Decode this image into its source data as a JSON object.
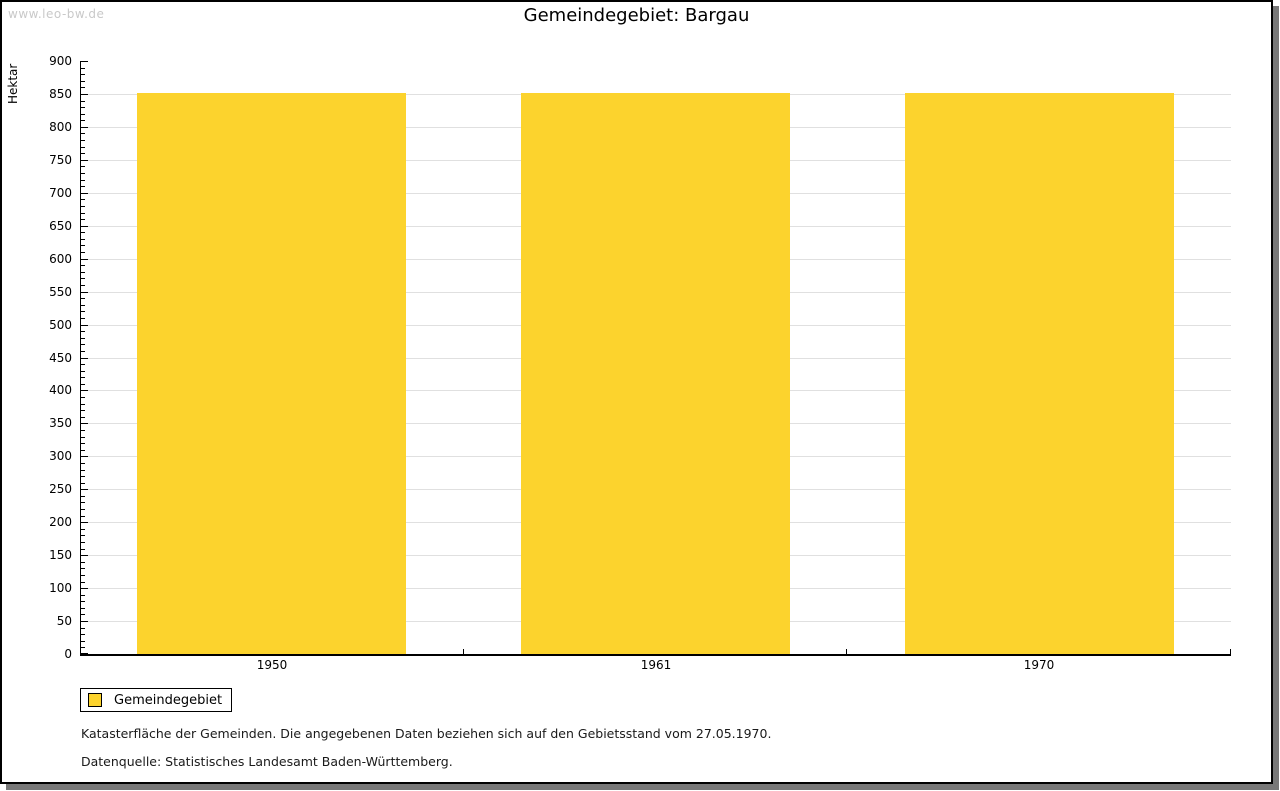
{
  "watermark": "www.leo-bw.de",
  "chart_data": {
    "type": "bar",
    "title": "Gemeindegebiet: Bargau",
    "categories": [
      "1950",
      "1961",
      "1970"
    ],
    "series": [
      {
        "name": "Gemeindegebiet",
        "values": [
          852,
          852,
          852
        ]
      }
    ],
    "xlabel": "",
    "ylabel": "Hektar",
    "ylim": [
      0,
      900
    ],
    "ytick_major": 50,
    "ytick_minor": 10,
    "grid": "horizontal-major",
    "legend_position": "bottom-left",
    "bar_color": "#FCD32D",
    "grid_color": "#E0E0E0",
    "axis_color": "#000000"
  },
  "legend": {
    "label": "Gemeindegebiet",
    "swatch_color": "#FCD32D"
  },
  "footnotes": [
    "Katasterfläche der Gemeinden. Die angegebenen Daten beziehen sich auf den Gebietsstand vom 27.05.1970.",
    "Datenquelle: Statistisches Landesamt Baden-Württemberg."
  ],
  "frame": {
    "border_color": "#000000",
    "shadow_color": "#777777",
    "watermark_color": "#C9C9C9"
  }
}
